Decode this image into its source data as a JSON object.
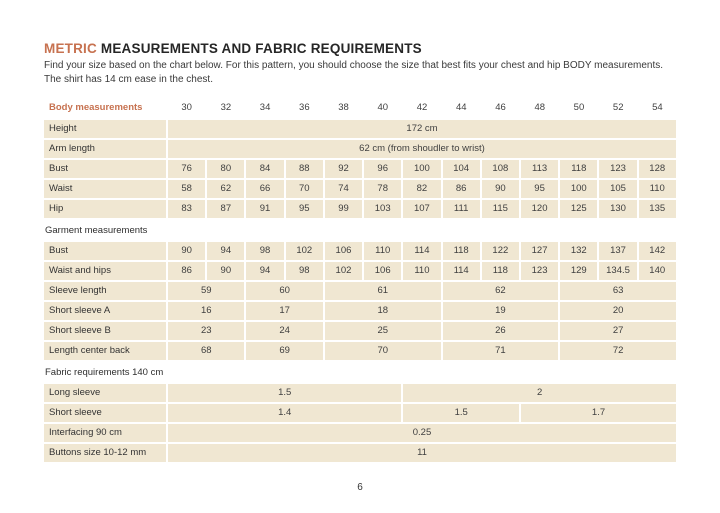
{
  "page": {
    "title_highlight": "METRIC",
    "title_rest": " MEASUREMENTS AND FABRIC REQUIREMENTS",
    "intro": "Find your size based on the chart below. For this pattern, you should choose the size that best fits your chest and hip BODY measurements. The shirt has 14 cm ease in the chest.",
    "page_number": "6"
  },
  "colors": {
    "accent": "#c77250",
    "cell_background": "#f0e7d2",
    "text": "#3f3f3f",
    "heading_text": "#262626"
  },
  "table": {
    "header": {
      "label": "Body measurements",
      "sizes": [
        "30",
        "32",
        "34",
        "36",
        "38",
        "40",
        "42",
        "44",
        "46",
        "48",
        "50",
        "52",
        "54"
      ]
    },
    "sections": [
      {
        "name": "body-measurements",
        "heading": null,
        "rows": [
          {
            "label": "Height",
            "cells": [
              {
                "text": "172 cm",
                "span": 13
              }
            ]
          },
          {
            "label": "Arm length",
            "cells": [
              {
                "text": "62 cm (from shoudler to wrist)",
                "span": 13
              }
            ]
          },
          {
            "label": "Bust",
            "cells": [
              "76",
              "80",
              "84",
              "88",
              "92",
              "96",
              "100",
              "104",
              "108",
              "113",
              "118",
              "123",
              "128"
            ]
          },
          {
            "label": "Waist",
            "cells": [
              "58",
              "62",
              "66",
              "70",
              "74",
              "78",
              "82",
              "86",
              "90",
              "95",
              "100",
              "105",
              "110"
            ]
          },
          {
            "label": "Hip",
            "cells": [
              "83",
              "87",
              "91",
              "95",
              "99",
              "103",
              "107",
              "111",
              "115",
              "120",
              "125",
              "130",
              "135"
            ]
          }
        ]
      },
      {
        "name": "garment-measurements",
        "heading": "Garment measurements",
        "rows": [
          {
            "label": "Bust",
            "cells": [
              "90",
              "94",
              "98",
              "102",
              "106",
              "110",
              "114",
              "118",
              "122",
              "127",
              "132",
              "137",
              "142"
            ]
          },
          {
            "label": "Waist and hips",
            "cells": [
              "86",
              "90",
              "94",
              "98",
              "102",
              "106",
              "110",
              "114",
              "118",
              "123",
              "129",
              "134.5",
              "140"
            ]
          },
          {
            "label": "Sleeve length",
            "cells": [
              {
                "text": "59",
                "span": 2
              },
              {
                "text": "60",
                "span": 2
              },
              {
                "text": "61",
                "span": 3
              },
              {
                "text": "62",
                "span": 3
              },
              {
                "text": "63",
                "span": 3
              }
            ]
          },
          {
            "label": "Short sleeve A",
            "cells": [
              {
                "text": "16",
                "span": 2
              },
              {
                "text": "17",
                "span": 2
              },
              {
                "text": "18",
                "span": 3
              },
              {
                "text": "19",
                "span": 3
              },
              {
                "text": "20",
                "span": 3
              }
            ]
          },
          {
            "label": "Short sleeve B",
            "cells": [
              {
                "text": "23",
                "span": 2
              },
              {
                "text": "24",
                "span": 2
              },
              {
                "text": "25",
                "span": 3
              },
              {
                "text": "26",
                "span": 3
              },
              {
                "text": "27",
                "span": 3
              }
            ]
          },
          {
            "label": "Length center back",
            "cells": [
              {
                "text": "68",
                "span": 2
              },
              {
                "text": "69",
                "span": 2
              },
              {
                "text": "70",
                "span": 3
              },
              {
                "text": "71",
                "span": 3
              },
              {
                "text": "72",
                "span": 3
              }
            ]
          }
        ]
      },
      {
        "name": "fabric-requirements",
        "heading": "Fabric requirements 140 cm",
        "rows": [
          {
            "label": "Long sleeve",
            "cells": [
              {
                "text": "1.5",
                "span": 6
              },
              {
                "text": "2",
                "span": 7
              }
            ]
          },
          {
            "label": "Short sleeve",
            "cells": [
              {
                "text": "1.4",
                "span": 6
              },
              {
                "text": "1.5",
                "span": 3
              },
              {
                "text": "1.7",
                "span": 4
              }
            ]
          },
          {
            "label": "Interfacing 90 cm",
            "cells": [
              {
                "text": "0.25",
                "span": 13
              }
            ]
          },
          {
            "label": "Buttons size 10-12 mm",
            "cells": [
              {
                "text": "11",
                "span": 13
              }
            ]
          }
        ]
      }
    ]
  }
}
